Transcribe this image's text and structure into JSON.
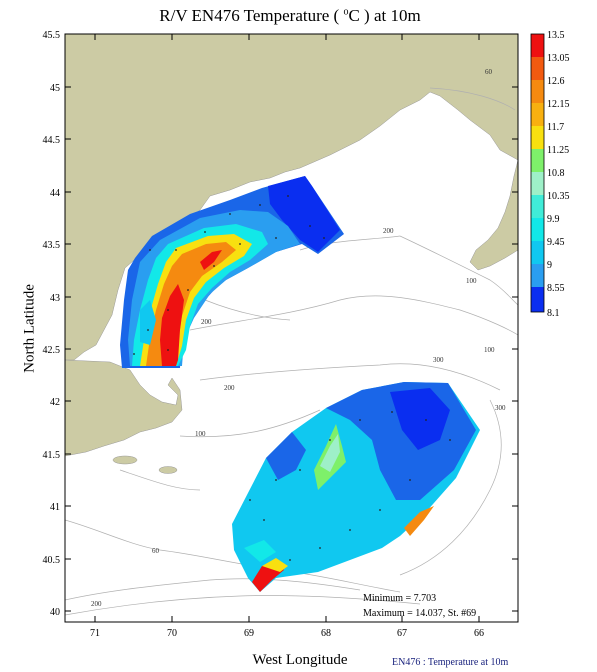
{
  "title": {
    "prefix": "R/V EN476 Temperature ( ",
    "unit_sup": "o",
    "unit": "C ) at 10m"
  },
  "axes": {
    "xlabel": "West Longitude",
    "ylabel": "North Latitude",
    "x_ticks": [
      "71",
      "70",
      "69",
      "68",
      "67",
      "66"
    ],
    "y_ticks": [
      "45.5",
      "45",
      "44.5",
      "44",
      "43.5",
      "43",
      "42.5",
      "42",
      "41.5",
      "41",
      "40.5",
      "40"
    ],
    "x_range_west_lon": [
      71.3,
      65.5
    ],
    "y_range_lat": [
      39.9,
      45.5
    ]
  },
  "colorbar": {
    "labels": [
      "13.5",
      "13.05",
      "12.6",
      "12.15",
      "11.7",
      "11.25",
      "10.8",
      "10.35",
      "9.9",
      "9.45",
      "9",
      "8.55",
      "8.1"
    ],
    "colors": [
      "#ee1111",
      "#f25a10",
      "#f58a10",
      "#f8b010",
      "#f8e010",
      "#f2f522",
      "#7ef06a",
      "#9ef0c8",
      "#12e8e8",
      "#10c8f0",
      "#2a9ef0",
      "#1a66e8",
      "#0a2ef0"
    ]
  },
  "isobaths": [
    "60",
    "100",
    "200",
    "200",
    "200",
    "300",
    "100",
    "300",
    "100",
    "60",
    "100",
    "200"
  ],
  "stats": {
    "minimum": "Minimum = 7.703",
    "maximum": "Maximum = 14.037, St. #69"
  },
  "caption": "EN476 : Temperature at 10m",
  "colors": {
    "land": "#cccba4",
    "ocean": "#ffffff",
    "contour": "#b0b0b0"
  }
}
